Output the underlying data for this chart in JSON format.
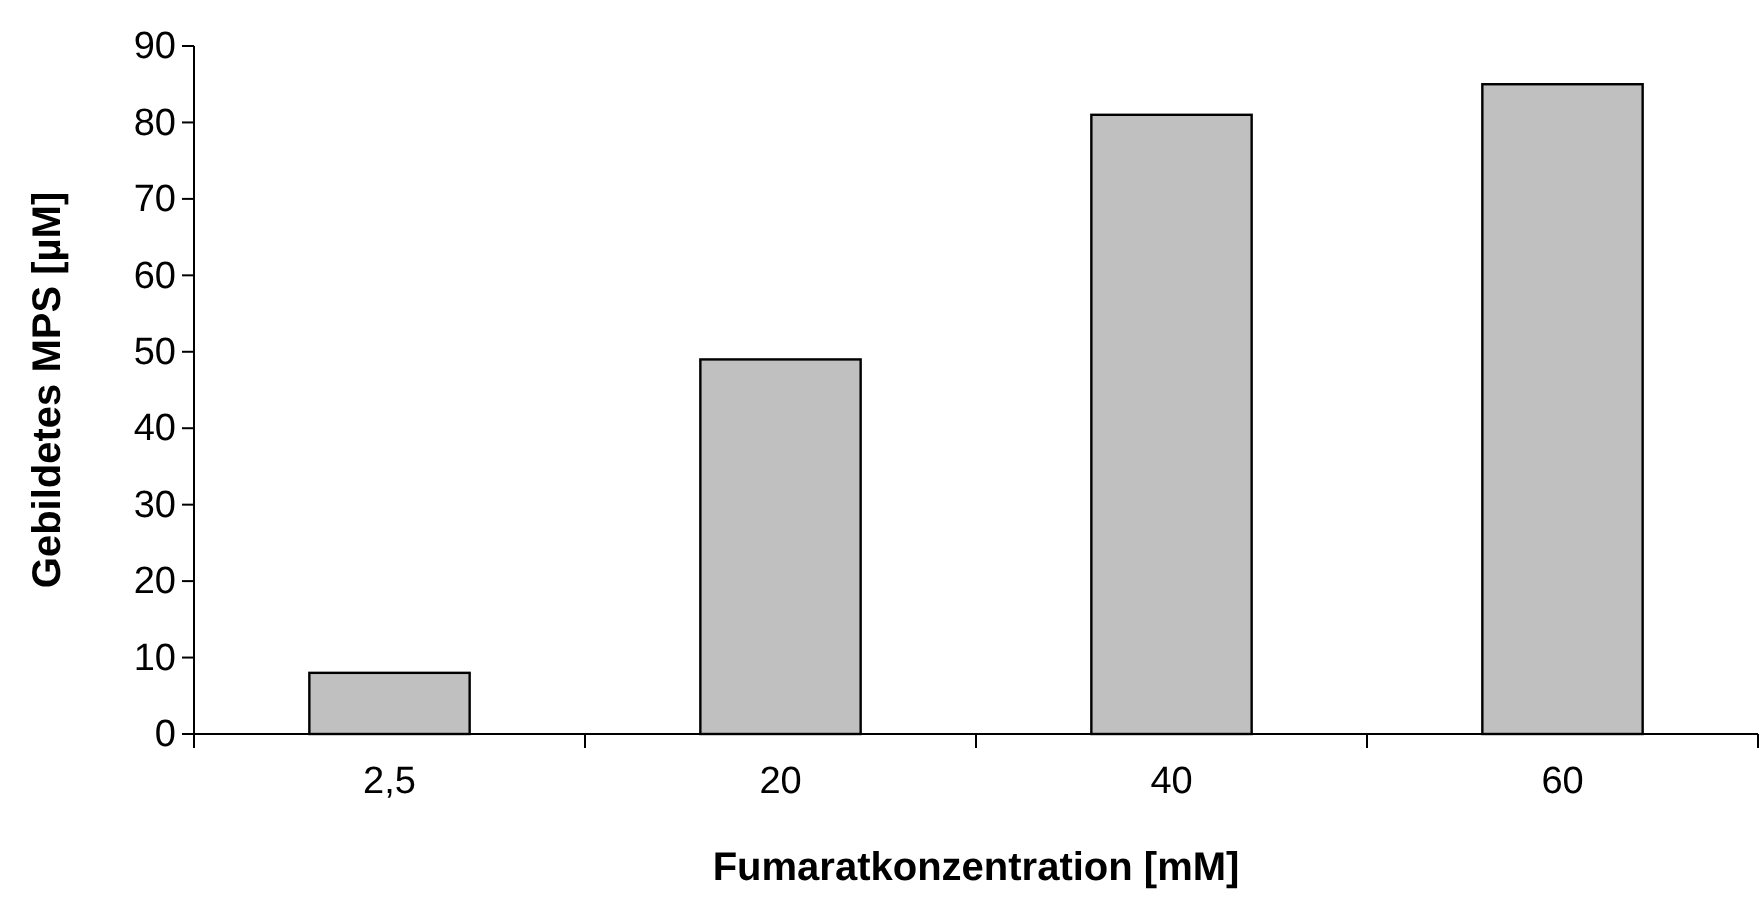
{
  "chart_data": {
    "type": "bar",
    "xlabel": "Fumaratkonzentration [mM]",
    "ylabel": "Gebildetes MPS [µM]",
    "categories": [
      "2,5",
      "20",
      "40",
      "60"
    ],
    "values": [
      8,
      49,
      81,
      85
    ],
    "color": "#c0c0c0",
    "ylim": [
      0,
      90
    ],
    "yticks": [
      0,
      10,
      20,
      30,
      40,
      50,
      60,
      70,
      80,
      90
    ],
    "grid": false
  }
}
